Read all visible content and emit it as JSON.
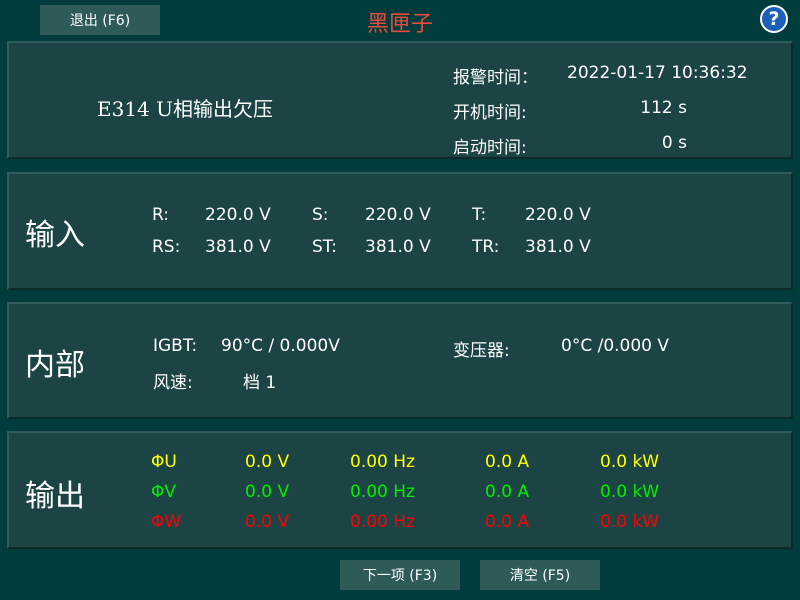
{
  "header": {
    "exit_button": "退出 (F6)",
    "title": "黑匣子",
    "title_color": "#e84c3d",
    "help_icon": "help-icon"
  },
  "alarm": {
    "code_text": "E314  U相输出欠压",
    "alarm_time_label": "报警时间：",
    "alarm_time": "2022-01-17 10:36:32",
    "uptime_label": "开机时间:",
    "uptime": "112 s",
    "start_label": "启动时间:",
    "start_time": "0 s"
  },
  "input": {
    "title": "输入",
    "rows": [
      [
        {
          "label": "R:",
          "value": "220.0 V"
        },
        {
          "label": "S:",
          "value": "220.0 V"
        },
        {
          "label": "T:",
          "value": "220.0 V"
        }
      ],
      [
        {
          "label": "RS:",
          "value": "381.0 V"
        },
        {
          "label": "ST:",
          "value": "381.0 V"
        },
        {
          "label": "TR:",
          "value": "381.0 V"
        }
      ]
    ]
  },
  "internal": {
    "title": "内部",
    "igbt_label": "IGBT:",
    "igbt_value": "90°C / 0.000V",
    "transformer_label": "变压器:",
    "transformer_value": "0°C /0.000 V",
    "fan_label": "风速:",
    "fan_value": "档 1"
  },
  "output": {
    "title": "输出",
    "rows": [
      {
        "phase": "ΦU",
        "voltage": "0.0 V",
        "freq": "0.00 Hz",
        "current": "0.0 A",
        "power": "0.0 kW",
        "color": "#ffff00"
      },
      {
        "phase": "ΦV",
        "voltage": "0.0 V",
        "freq": "0.00 Hz",
        "current": "0.0 A",
        "power": "0.0 kW",
        "color": "#00ee00"
      },
      {
        "phase": "ΦW",
        "voltage": "0.0 V",
        "freq": "0.00 Hz",
        "current": "0.0 A",
        "power": "0.0 kW",
        "color": "#ff0000"
      }
    ]
  },
  "footer": {
    "next_button": "下一项 (F3)",
    "clear_button": "清空 (F5)"
  }
}
